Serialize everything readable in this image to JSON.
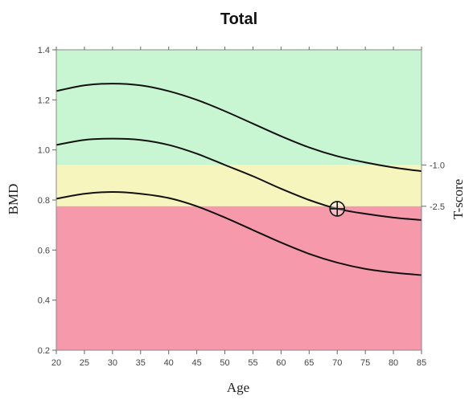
{
  "chart_data": {
    "type": "line",
    "title": "Total",
    "xlabel": "Age",
    "ylabel": "BMD",
    "y2label": "T-score",
    "xlim": [
      20,
      85
    ],
    "ylim": [
      0.2,
      1.4
    ],
    "xticks": [
      "20",
      "25",
      "30",
      "35",
      "40",
      "45",
      "50",
      "55",
      "60",
      "65",
      "70",
      "75",
      "80",
      "85"
    ],
    "yticks": [
      "0.2",
      "0.4",
      "0.6",
      "0.8",
      "1.0",
      "1.2",
      "1.4"
    ],
    "tscore_thresholds": [
      {
        "label": "-1.0",
        "bmd": 0.94
      },
      {
        "label": "-2.5",
        "bmd": 0.775
      }
    ],
    "zones": [
      {
        "from": 0.94,
        "to": 1.4,
        "color": "#c8f6d2"
      },
      {
        "from": 0.775,
        "to": 0.94,
        "color": "#f6f5bd"
      },
      {
        "from": 0.2,
        "to": 0.775,
        "color": "#f69aab"
      }
    ],
    "series": [
      {
        "x": [
          20,
          25,
          30,
          35,
          40,
          45,
          50,
          55,
          60,
          65,
          70,
          75,
          80,
          85
        ],
        "values": [
          1.235,
          1.258,
          1.265,
          1.258,
          1.235,
          1.2,
          1.155,
          1.105,
          1.055,
          1.01,
          0.975,
          0.95,
          0.93,
          0.915
        ]
      },
      {
        "x": [
          20,
          25,
          30,
          35,
          40,
          45,
          50,
          55,
          60,
          65,
          70,
          75,
          80,
          85
        ],
        "values": [
          1.02,
          1.04,
          1.045,
          1.04,
          1.02,
          0.985,
          0.94,
          0.895,
          0.845,
          0.8,
          0.765,
          0.745,
          0.73,
          0.72
        ]
      },
      {
        "x": [
          20,
          25,
          30,
          35,
          40,
          45,
          50,
          55,
          60,
          65,
          70,
          75,
          80,
          85
        ],
        "values": [
          0.805,
          0.825,
          0.832,
          0.825,
          0.808,
          0.775,
          0.73,
          0.68,
          0.63,
          0.585,
          0.55,
          0.525,
          0.51,
          0.5
        ]
      }
    ],
    "patient_point": {
      "x": 70,
      "y": 0.765
    },
    "grid": false
  }
}
